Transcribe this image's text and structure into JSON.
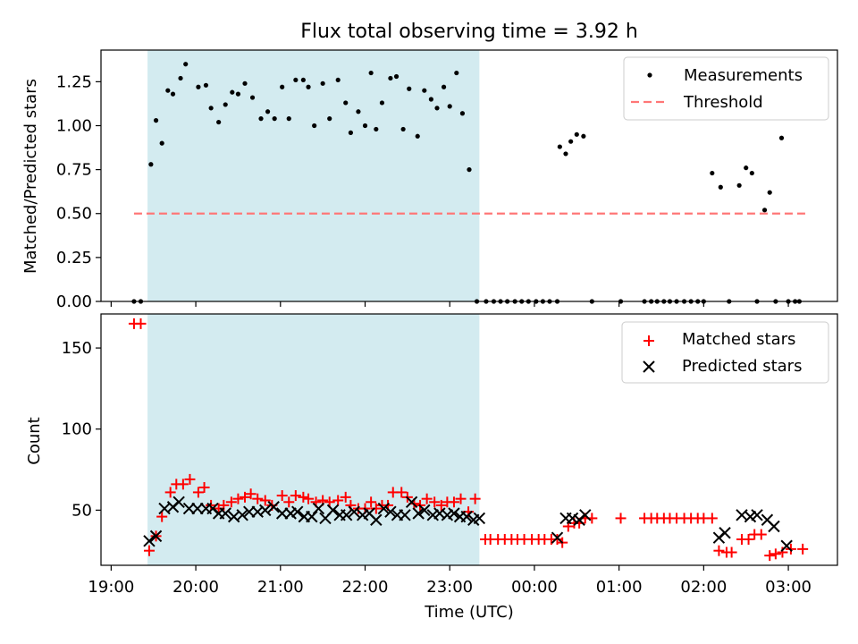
{
  "chart_data": [
    {
      "type": "scatter",
      "title": "Flux total observing time = 3.92 h",
      "ylabel": "Matched/Predicted stars",
      "xlabel": "",
      "xlim_hours": [
        18.88,
        27.58
      ],
      "ylim": [
        0,
        1.43
      ],
      "yticks": [
        0.0,
        0.25,
        0.5,
        0.75,
        1.0,
        1.25
      ],
      "ytick_labels": [
        "0.00",
        "0.25",
        "0.50",
        "0.75",
        "1.00",
        "1.25"
      ],
      "shaded_interval_hours": [
        19.43,
        23.35
      ],
      "threshold": {
        "name": "Threshold",
        "value": 0.5,
        "x_range_hours": [
          19.27,
          27.2
        ],
        "color": "#ff7777"
      },
      "legend": [
        "Measurements",
        "Threshold"
      ],
      "series": [
        {
          "name": "Measurements",
          "marker": "dot",
          "color": "#000000",
          "x": [
            19.27,
            19.35,
            19.47,
            19.53,
            19.6,
            19.67,
            19.73,
            19.82,
            19.88,
            20.03,
            20.12,
            20.18,
            20.27,
            20.35,
            20.43,
            20.5,
            20.58,
            20.67,
            20.77,
            20.85,
            20.93,
            21.02,
            21.1,
            21.18,
            21.27,
            21.33,
            21.4,
            21.5,
            21.58,
            21.68,
            21.77,
            21.83,
            21.92,
            22.0,
            22.07,
            22.13,
            22.2,
            22.3,
            22.37,
            22.45,
            22.52,
            22.62,
            22.7,
            22.78,
            22.85,
            22.93,
            23.0,
            23.08,
            23.15,
            23.23,
            23.32,
            23.43,
            23.52,
            23.6,
            23.68,
            23.77,
            23.85,
            23.93,
            24.02,
            24.1,
            24.18,
            24.27,
            24.3,
            24.37,
            24.43,
            24.5,
            24.58,
            24.68,
            25.02,
            25.3,
            25.38,
            25.45,
            25.53,
            25.6,
            25.68,
            25.77,
            25.85,
            25.93,
            26.0,
            26.1,
            26.2,
            26.3,
            26.42,
            26.5,
            26.57,
            26.63,
            26.72,
            26.78,
            26.85,
            26.92,
            27.0,
            27.08,
            27.13
          ],
          "y": [
            0,
            0,
            0.78,
            1.03,
            0.9,
            1.2,
            1.18,
            1.27,
            1.35,
            1.22,
            1.23,
            1.1,
            1.02,
            1.12,
            1.19,
            1.18,
            1.24,
            1.16,
            1.04,
            1.08,
            1.04,
            1.22,
            1.04,
            1.26,
            1.26,
            1.22,
            1.0,
            1.24,
            1.04,
            1.26,
            1.13,
            0.96,
            1.08,
            1.0,
            1.3,
            0.98,
            1.13,
            1.27,
            1.28,
            0.98,
            1.21,
            0.94,
            1.2,
            1.15,
            1.1,
            1.22,
            1.11,
            1.3,
            1.07,
            0.75,
            0,
            0,
            0,
            0,
            0,
            0,
            0,
            0,
            0,
            0,
            0,
            0,
            0.88,
            0.84,
            0.91,
            0.95,
            0.94,
            0,
            0,
            0,
            0,
            0,
            0,
            0,
            0,
            0,
            0,
            0,
            0,
            0.73,
            0.65,
            0,
            0.66,
            0.76,
            0.73,
            0,
            0.52,
            0.62,
            0,
            0.93,
            0,
            0,
            0
          ]
        }
      ]
    },
    {
      "type": "scatter",
      "title": "",
      "ylabel": "Count",
      "xlabel": "Time (UTC)",
      "xlim_hours": [
        18.88,
        27.58
      ],
      "ylim": [
        16,
        171
      ],
      "yticks": [
        50,
        100,
        150
      ],
      "ytick_labels": [
        "50",
        "100",
        "150"
      ],
      "xticks_hours": [
        19,
        20,
        21,
        22,
        23,
        24,
        25,
        26,
        27
      ],
      "xtick_labels": [
        "19:00",
        "20:00",
        "21:00",
        "22:00",
        "23:00",
        "00:00",
        "01:00",
        "02:00",
        "03:00"
      ],
      "shaded_interval_hours": [
        19.43,
        23.35
      ],
      "legend": [
        "Matched stars",
        "Predicted stars"
      ],
      "series": [
        {
          "name": "Matched stars",
          "marker": "plus",
          "color": "#ff0000",
          "x": [
            19.27,
            19.35,
            19.45,
            19.53,
            19.6,
            19.7,
            19.77,
            19.85,
            19.93,
            20.03,
            20.1,
            20.18,
            20.27,
            20.33,
            20.42,
            20.5,
            20.58,
            20.65,
            20.73,
            20.82,
            20.9,
            21.02,
            21.1,
            21.18,
            21.27,
            21.33,
            21.42,
            21.5,
            21.58,
            21.68,
            21.77,
            21.83,
            21.92,
            22.0,
            22.07,
            22.13,
            22.2,
            22.27,
            22.33,
            22.43,
            22.5,
            22.58,
            22.65,
            22.73,
            22.82,
            22.9,
            22.97,
            23.05,
            23.13,
            23.22,
            23.3,
            23.42,
            23.48,
            23.57,
            23.65,
            23.73,
            23.8,
            23.88,
            23.97,
            24.05,
            24.12,
            24.2,
            24.27,
            24.33,
            24.4,
            24.47,
            24.53,
            24.6,
            24.68,
            25.02,
            25.3,
            25.38,
            25.45,
            25.53,
            25.6,
            25.68,
            25.77,
            25.85,
            25.93,
            26.0,
            26.1,
            26.18,
            26.27,
            26.33,
            26.45,
            26.53,
            26.6,
            26.68,
            26.78,
            26.85,
            26.93,
            27.03,
            27.17
          ],
          "y": [
            165,
            165,
            25,
            34,
            46,
            61,
            66,
            66,
            69,
            61,
            64,
            53,
            51,
            53,
            55,
            57,
            58,
            60,
            57,
            56,
            53,
            59,
            55,
            59,
            58,
            57,
            55,
            56,
            55,
            56,
            58,
            53,
            51,
            51,
            55,
            51,
            53,
            53,
            61,
            61,
            58,
            54,
            53,
            57,
            55,
            53,
            55,
            55,
            57,
            49,
            57,
            32,
            32,
            32,
            32,
            32,
            32,
            32,
            32,
            32,
            32,
            32,
            32,
            30,
            40,
            42,
            42,
            45,
            45,
            45,
            45,
            45,
            45,
            45,
            45,
            45,
            45,
            45,
            45,
            45,
            45,
            25,
            24,
            24,
            32,
            32,
            35,
            35,
            22,
            23,
            24,
            26,
            26
          ]
        },
        {
          "name": "Predicted stars",
          "marker": "x",
          "color": "#000000",
          "x": [
            19.45,
            19.53,
            19.63,
            19.73,
            19.8,
            19.92,
            20.02,
            20.12,
            20.2,
            20.27,
            20.35,
            20.45,
            20.55,
            20.63,
            20.73,
            20.82,
            20.92,
            21.02,
            21.12,
            21.2,
            21.28,
            21.37,
            21.45,
            21.53,
            21.62,
            21.7,
            21.78,
            21.87,
            21.97,
            22.05,
            22.13,
            22.22,
            22.3,
            22.38,
            22.47,
            22.55,
            22.63,
            22.7,
            22.8,
            22.88,
            22.97,
            23.05,
            23.12,
            23.2,
            23.28,
            23.35,
            24.27,
            24.37,
            24.45,
            24.53,
            24.6,
            26.18,
            26.25,
            26.45,
            26.55,
            26.63,
            26.75,
            26.83,
            26.98
          ],
          "y": [
            31,
            34,
            51,
            52,
            55,
            51,
            51,
            51,
            51,
            48,
            48,
            46,
            47,
            49,
            49,
            50,
            52,
            48,
            48,
            49,
            46,
            46,
            51,
            45,
            50,
            47,
            47,
            49,
            47,
            48,
            44,
            51,
            49,
            47,
            47,
            55,
            48,
            50,
            47,
            48,
            47,
            48,
            46,
            46,
            44,
            45,
            33,
            45,
            45,
            44,
            47,
            33,
            36,
            47,
            46,
            47,
            44,
            40,
            28
          ]
        }
      ]
    }
  ]
}
